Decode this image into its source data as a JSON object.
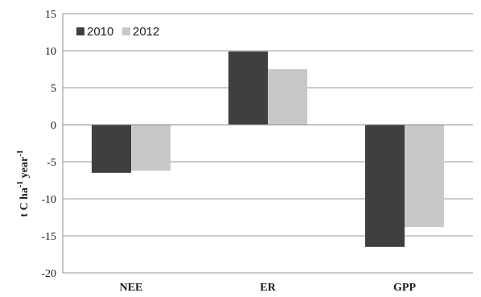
{
  "chart_data": {
    "type": "bar",
    "categories": [
      "NEE",
      "ER",
      "GPP"
    ],
    "series": [
      {
        "name": "2010",
        "values": [
          -6.5,
          9.9,
          -16.5
        ],
        "color": "#3f3f3f"
      },
      {
        "name": "2012",
        "values": [
          -6.2,
          7.5,
          -13.8
        ],
        "color": "#c8c8c8"
      }
    ],
    "title": "",
    "xlabel": "",
    "ylabel": {
      "main": "t C ha",
      "sup1": "-1",
      "mid": " year",
      "sup2": "-1"
    },
    "ylim": [
      -20,
      15
    ],
    "yticks": [
      15,
      10,
      5,
      0,
      -5,
      -10,
      -15,
      -20
    ],
    "grid": true,
    "legend_position": "top-left"
  }
}
